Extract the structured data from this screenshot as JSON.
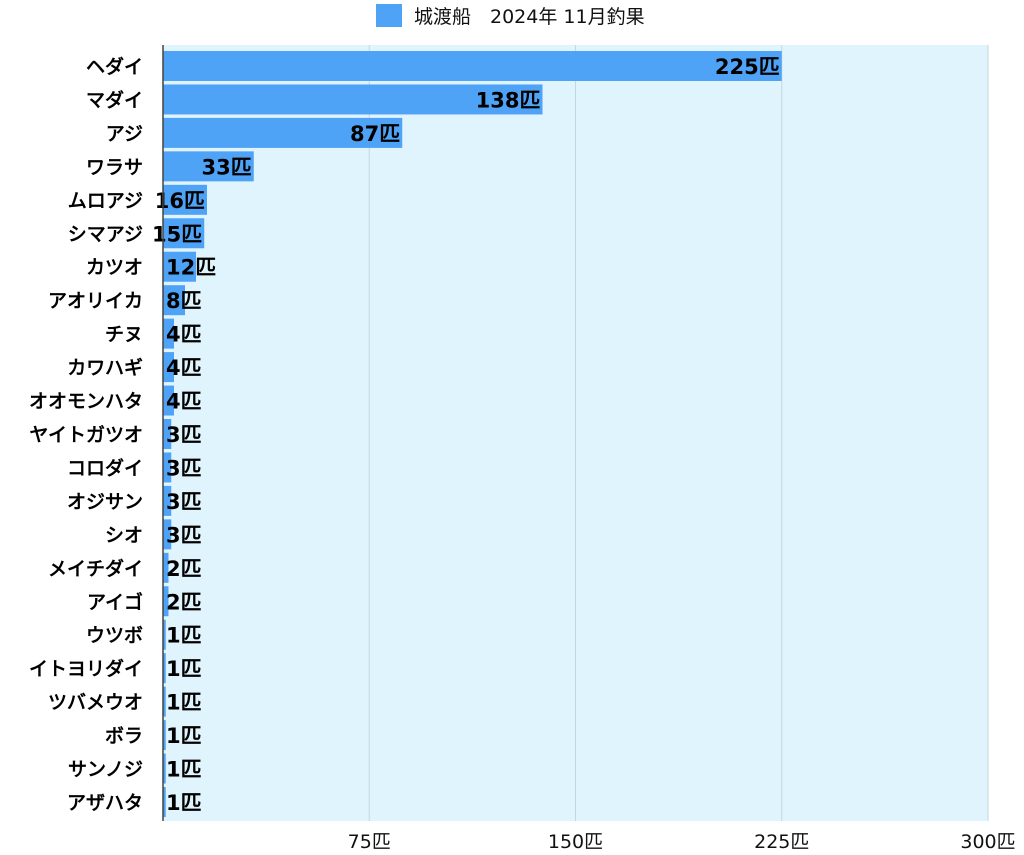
{
  "chart_data": {
    "type": "bar",
    "orientation": "horizontal",
    "series": [
      {
        "name": "城渡船　2024年 11月釣果",
        "color": "#4fa3f7",
        "values": [
          225,
          138,
          87,
          33,
          16,
          15,
          12,
          8,
          4,
          4,
          4,
          3,
          3,
          3,
          3,
          2,
          2,
          1,
          1,
          1,
          1,
          1,
          1
        ]
      }
    ],
    "categories": [
      "ヘダイ",
      "マダイ",
      "アジ",
      "ワラサ",
      "ムロアジ",
      "シマアジ",
      "カツオ",
      "アオリイカ",
      "チヌ",
      "カワハギ",
      "オオモンハタ",
      "ヤイトガツオ",
      "コロダイ",
      "オジサン",
      "シオ",
      "メイチダイ",
      "アイゴ",
      "ウツボ",
      "イトヨリダイ",
      "ツバメウオ",
      "ボラ",
      "サンノジ",
      "アザハタ"
    ],
    "value_labels": [
      "225匹",
      "138匹",
      "87匹",
      "33匹",
      "16匹",
      "15匹",
      "12匹",
      "8匹",
      "4匹",
      "4匹",
      "4匹",
      "3匹",
      "3匹",
      "3匹",
      "3匹",
      "2匹",
      "2匹",
      "1匹",
      "1匹",
      "1匹",
      "1匹",
      "1匹",
      "1匹"
    ],
    "x_ticks": [
      75,
      150,
      225,
      300
    ],
    "x_tick_labels": [
      "75匹",
      "150匹",
      "225匹",
      "300匹"
    ],
    "xlim": [
      0,
      300
    ],
    "grid": true,
    "legend": "top-center",
    "plot_background": "#dff4fc",
    "grid_color": "#c5d6e0"
  }
}
